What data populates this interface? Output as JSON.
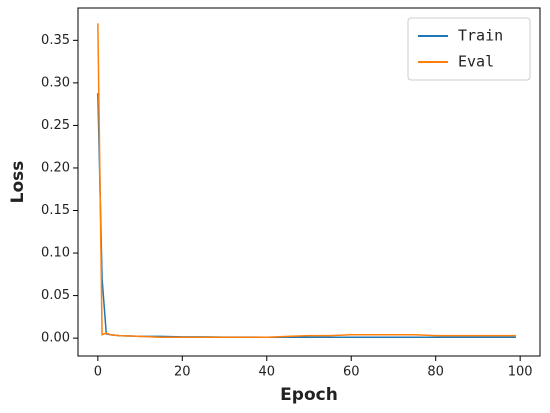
{
  "chart_data": {
    "type": "line",
    "x_label": "Epoch",
    "y_label": "Loss",
    "x": [
      0,
      1,
      2,
      3,
      5,
      10,
      15,
      20,
      25,
      30,
      35,
      40,
      45,
      50,
      55,
      60,
      65,
      70,
      75,
      80,
      85,
      90,
      95,
      99
    ],
    "series": [
      {
        "name": "Train",
        "color": "#1f77b4",
        "values": [
          0.288,
          0.07,
          0.005,
          0.004,
          0.003,
          0.002,
          0.002,
          0.0015,
          0.0015,
          0.0012,
          0.0012,
          0.001,
          0.001,
          0.001,
          0.001,
          0.001,
          0.001,
          0.001,
          0.001,
          0.001,
          0.001,
          0.001,
          0.001,
          0.001
        ]
      },
      {
        "name": "Eval",
        "color": "#ff7f0e",
        "values": [
          0.37,
          0.004,
          0.006,
          0.004,
          0.003,
          0.002,
          0.001,
          0.001,
          0.001,
          0.001,
          0.001,
          0.001,
          0.002,
          0.003,
          0.003,
          0.004,
          0.004,
          0.004,
          0.004,
          0.003,
          0.003,
          0.003,
          0.003,
          0.003
        ]
      }
    ],
    "xlim": [
      -4.7,
      104.7
    ],
    "xticks": [
      0,
      20,
      40,
      60,
      80,
      100
    ],
    "ylim": [
      -0.021,
      0.388
    ],
    "yticks": [
      {
        "value": 0,
        "label": "0.00"
      },
      {
        "value": 0.05,
        "label": "0.05"
      },
      {
        "value": 0.1,
        "label": "0.10"
      },
      {
        "value": 0.15,
        "label": "0.15"
      },
      {
        "value": 0.2,
        "label": "0.20"
      },
      {
        "value": 0.25,
        "label": "0.25"
      },
      {
        "value": 0.3,
        "label": "0.30"
      },
      {
        "value": 0.35,
        "label": "0.35"
      }
    ],
    "legend": "upper right",
    "grid": false
  }
}
